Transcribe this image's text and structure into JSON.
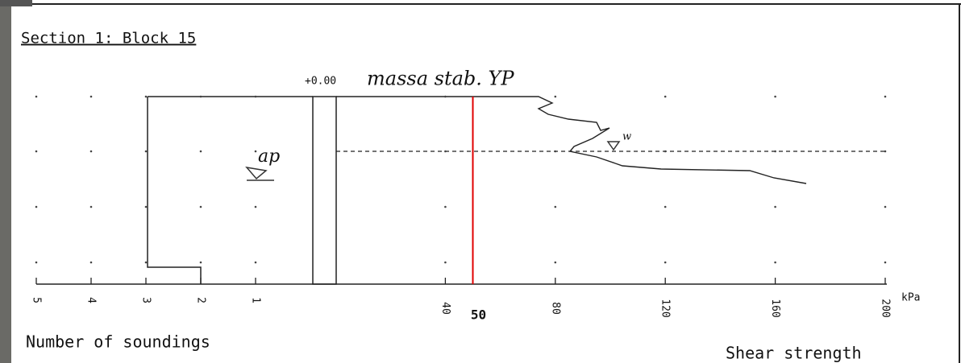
{
  "chart_data": {
    "type": "profile",
    "title": "Section 1: Block 15",
    "level_label": "+0.00",
    "annotations": [
      "massa stab. YP",
      "ap",
      "w"
    ],
    "soundings_axis": {
      "label": "Number of soundings",
      "xlim": [
        5,
        0
      ],
      "xticks": [
        5,
        4,
        3,
        2,
        1
      ]
    },
    "strength_axis": {
      "label": "Shear strength",
      "unit": "kPa",
      "xlim": [
        0,
        200
      ],
      "xticks": [
        40,
        80,
        120,
        160,
        200
      ]
    },
    "reference": {
      "value": 50,
      "label": "50",
      "color": "#e00000"
    },
    "grid": true
  }
}
